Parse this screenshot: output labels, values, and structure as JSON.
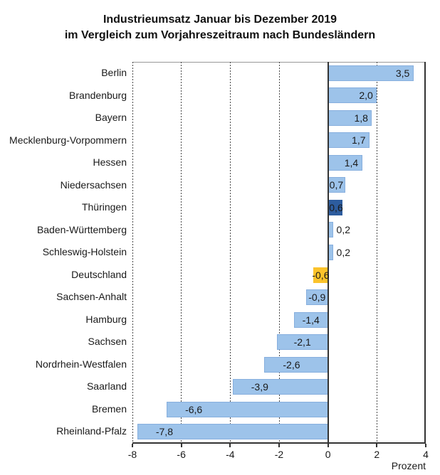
{
  "title": {
    "line1": "Industrieumsatz Januar bis Dezember 2019",
    "line2": "im Vergleich zum Vorjahreszeitraum nach Bundesländern"
  },
  "x_axis": {
    "unit_label": "Prozent",
    "tick_labels": [
      "-8",
      "-6",
      "-4",
      "-2",
      "0",
      "2",
      "4"
    ],
    "tick_values": [
      -8,
      -6,
      -4,
      -2,
      0,
      2,
      4
    ],
    "gridline_values": [
      -8,
      -6,
      -4,
      -2,
      2
    ],
    "range": [
      -8,
      4
    ]
  },
  "colors": {
    "bar_default": "#9DC3EA",
    "bar_default_border": "#87AFDE",
    "bar_highlight": "#2D5C9E",
    "bar_total": "#FBC32B",
    "axis": "#333333",
    "gridline": "#4A4A4A",
    "plot_top_border": "#999999",
    "text": "#1A1A1A"
  },
  "chart_data": {
    "type": "bar",
    "orientation": "horizontal",
    "title": "Industrieumsatz Januar bis Dezember 2019 im Vergleich zum Vorjahreszeitraum nach Bundesländern",
    "xlabel": "Prozent",
    "xlim": [
      -8,
      4
    ],
    "grid": "vertical dashed gridlines at -8, -6, -4, -2, 2; solid zero line",
    "legend": "none",
    "categories": [
      "Berlin",
      "Brandenburg",
      "Bayern",
      "Mecklenburg-Vorpommern",
      "Hessen",
      "Niedersachsen",
      "Thüringen",
      "Baden-Württemberg",
      "Schleswig-Holstein",
      "Deutschland",
      "Sachsen-Anhalt",
      "Hamburg",
      "Sachsen",
      "Nordrhein-Westfalen",
      "Saarland",
      "Bremen",
      "Rheinland-Pfalz"
    ],
    "values": [
      3.5,
      2.0,
      1.8,
      1.7,
      1.4,
      0.7,
      0.6,
      0.2,
      0.2,
      -0.6,
      -0.9,
      -1.4,
      -2.1,
      -2.6,
      -3.9,
      -6.6,
      -7.8
    ],
    "value_labels": [
      "3,5",
      "2,0",
      "1,8",
      "1,7",
      "1,4",
      "0,7",
      "0,6",
      "0,2",
      "0,2",
      "-0,6",
      "-0,9",
      "-1,4",
      "-2,1",
      "-2,6",
      "-3,9",
      "-6,6",
      "-7,8"
    ],
    "bar_styles": [
      "default",
      "default",
      "default",
      "default",
      "default",
      "default",
      "highlight",
      "default",
      "default",
      "total",
      "default",
      "default",
      "default",
      "default",
      "default",
      "default",
      "default"
    ],
    "highlighted_category": "Thüringen",
    "total_row_category": "Deutschland"
  }
}
